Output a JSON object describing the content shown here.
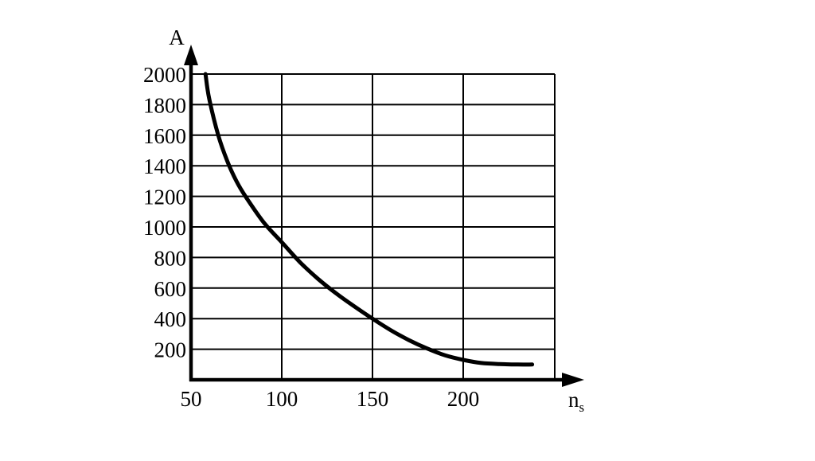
{
  "chart_data": {
    "type": "line",
    "title": "",
    "xlabel": "n",
    "xlabel_subscript": "s",
    "ylabel": "A",
    "xlim": [
      50,
      250
    ],
    "ylim": [
      0,
      2000
    ],
    "x_ticks": [
      "50",
      "100",
      "150",
      "200"
    ],
    "y_ticks": [
      "200",
      "400",
      "600",
      "800",
      "1000",
      "1200",
      "1400",
      "1600",
      "1800",
      "2000"
    ],
    "grid": true,
    "series": [
      {
        "x": [
          58,
          60,
          65,
          70,
          75,
          80,
          90,
          100,
          110,
          120,
          130,
          140,
          150,
          160,
          170,
          180,
          190,
          200,
          210,
          220,
          230,
          238
        ],
        "y": [
          2000,
          1840,
          1600,
          1430,
          1300,
          1200,
          1030,
          900,
          770,
          660,
          565,
          480,
          400,
          325,
          260,
          205,
          160,
          130,
          110,
          103,
          100,
          100
        ]
      }
    ],
    "colors": {
      "line": "#000000",
      "grid": "#000000",
      "background": "#ffffff"
    }
  }
}
